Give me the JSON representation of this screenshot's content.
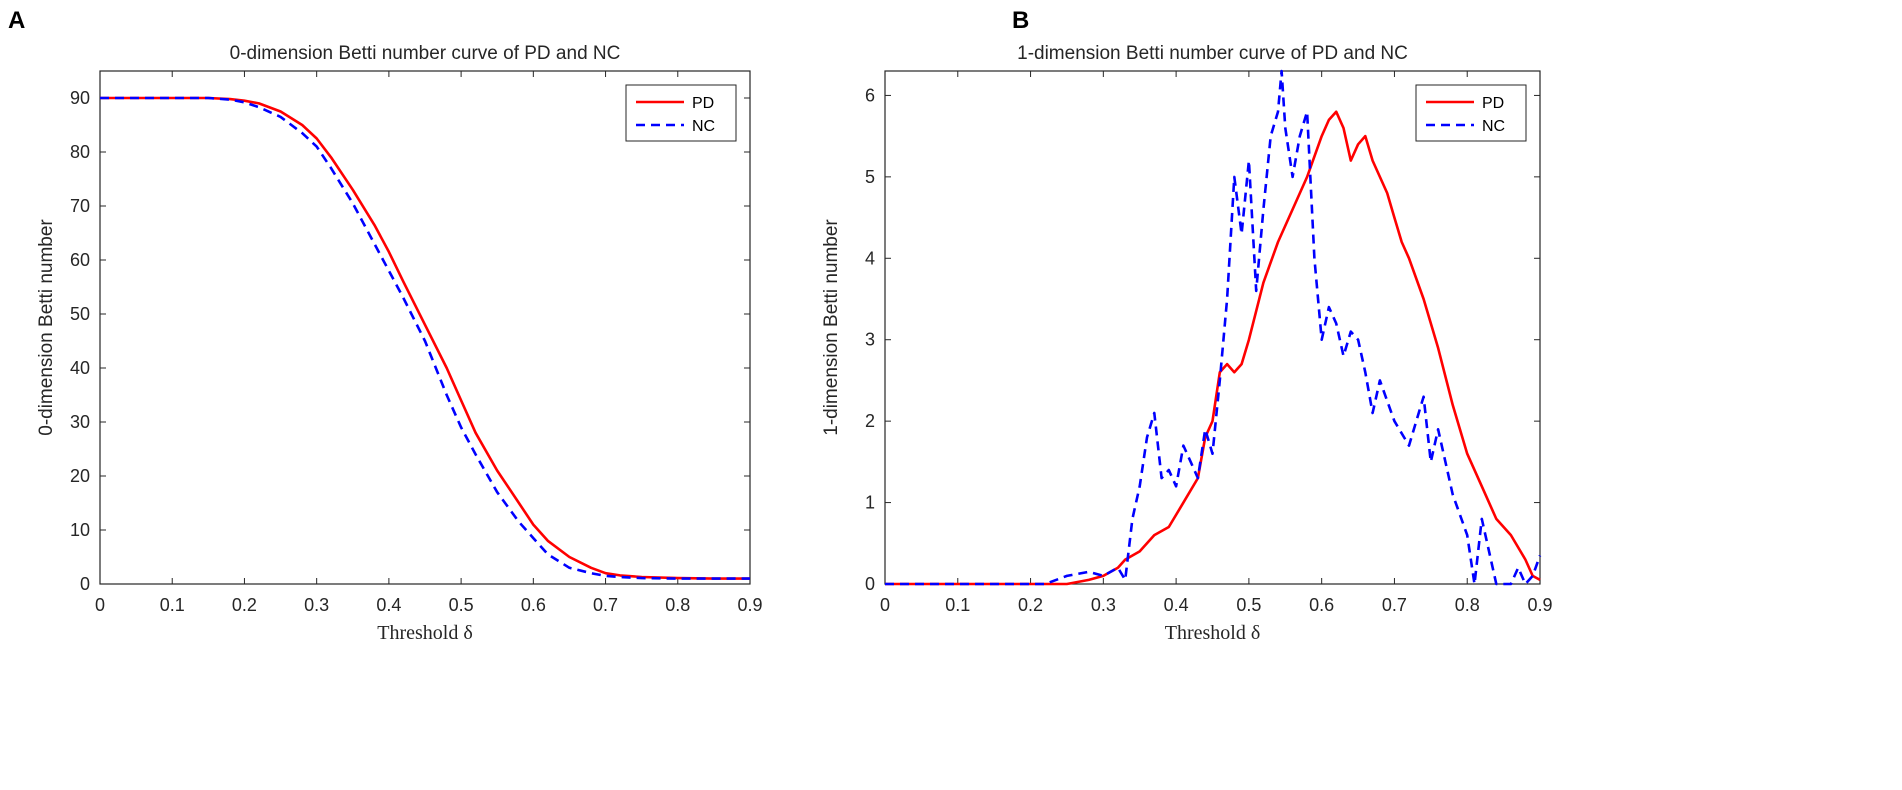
{
  "figure": {
    "panel_a_letter": "A",
    "panel_b_letter": "B"
  },
  "colors": {
    "pd": "#ff0000",
    "nc": "#0000ff",
    "axis": "#262626"
  },
  "chart_data": [
    {
      "type": "line",
      "panel": "A",
      "title": "0-dimension Betti number curve of PD and NC",
      "xlabel": "Threshold δ",
      "ylabel": "0-dimension Betti number",
      "xlim": [
        0,
        0.9
      ],
      "ylim": [
        0,
        95
      ],
      "xticks": [
        0,
        0.1,
        0.2,
        0.3,
        0.4,
        0.5,
        0.6,
        0.7,
        0.8,
        0.9
      ],
      "yticks": [
        0,
        10,
        20,
        30,
        40,
        50,
        60,
        70,
        80,
        90
      ],
      "legend": "top-right",
      "series": [
        {
          "name": "PD",
          "style": "solid",
          "x": [
            0,
            0.1,
            0.15,
            0.18,
            0.2,
            0.22,
            0.25,
            0.28,
            0.3,
            0.32,
            0.35,
            0.38,
            0.4,
            0.42,
            0.45,
            0.48,
            0.5,
            0.52,
            0.55,
            0.58,
            0.6,
            0.62,
            0.65,
            0.68,
            0.7,
            0.72,
            0.75,
            0.8,
            0.85,
            0.9
          ],
          "y": [
            90,
            90,
            90,
            89.8,
            89.5,
            89,
            87.5,
            85,
            82.5,
            79,
            73,
            66.5,
            61.5,
            56,
            48,
            40,
            34,
            28,
            21,
            15,
            11,
            8,
            5,
            3,
            2,
            1.6,
            1.3,
            1.1,
            1,
            1
          ]
        },
        {
          "name": "NC",
          "style": "dashed",
          "x": [
            0,
            0.1,
            0.15,
            0.18,
            0.2,
            0.22,
            0.25,
            0.28,
            0.3,
            0.32,
            0.35,
            0.38,
            0.4,
            0.42,
            0.45,
            0.48,
            0.5,
            0.52,
            0.55,
            0.58,
            0.6,
            0.62,
            0.65,
            0.68,
            0.7,
            0.72,
            0.75,
            0.8,
            0.85,
            0.9
          ],
          "y": [
            90,
            90,
            90,
            89.7,
            89.2,
            88.3,
            86.5,
            83.5,
            81,
            77,
            70.5,
            63,
            58,
            53,
            45,
            35,
            29,
            24,
            17,
            11.5,
            8.5,
            5.5,
            3,
            2,
            1.5,
            1.3,
            1.1,
            1,
            1,
            1
          ]
        }
      ]
    },
    {
      "type": "line",
      "panel": "B",
      "title": "1-dimension Betti number curve of PD and NC",
      "xlabel": "Threshold δ",
      "ylabel": "1-dimension Betti number",
      "xlim": [
        0,
        0.9
      ],
      "ylim": [
        0,
        6.3
      ],
      "xticks": [
        0,
        0.1,
        0.2,
        0.3,
        0.4,
        0.5,
        0.6,
        0.7,
        0.8,
        0.9
      ],
      "yticks": [
        0,
        1,
        2,
        3,
        4,
        5,
        6
      ],
      "legend": "top-right",
      "series": [
        {
          "name": "PD",
          "style": "solid",
          "x": [
            0,
            0.2,
            0.25,
            0.28,
            0.3,
            0.32,
            0.33,
            0.35,
            0.37,
            0.39,
            0.41,
            0.43,
            0.44,
            0.45,
            0.46,
            0.47,
            0.48,
            0.49,
            0.5,
            0.52,
            0.54,
            0.56,
            0.58,
            0.6,
            0.61,
            0.62,
            0.63,
            0.64,
            0.65,
            0.66,
            0.67,
            0.68,
            0.69,
            0.7,
            0.71,
            0.72,
            0.74,
            0.76,
            0.78,
            0.8,
            0.82,
            0.84,
            0.86,
            0.88,
            0.89,
            0.9
          ],
          "y": [
            0,
            0,
            0,
            0.05,
            0.1,
            0.2,
            0.3,
            0.4,
            0.6,
            0.7,
            1.0,
            1.3,
            1.8,
            2.0,
            2.6,
            2.7,
            2.6,
            2.7,
            3.0,
            3.7,
            4.2,
            4.6,
            5.0,
            5.5,
            5.7,
            5.8,
            5.6,
            5.2,
            5.4,
            5.5,
            5.2,
            5.0,
            4.8,
            4.5,
            4.2,
            4.0,
            3.5,
            2.9,
            2.2,
            1.6,
            1.2,
            0.8,
            0.6,
            0.3,
            0.1,
            0.05
          ]
        },
        {
          "name": "NC",
          "style": "dashed",
          "x": [
            0,
            0.22,
            0.25,
            0.28,
            0.3,
            0.32,
            0.33,
            0.34,
            0.35,
            0.36,
            0.37,
            0.38,
            0.39,
            0.4,
            0.41,
            0.42,
            0.43,
            0.44,
            0.45,
            0.46,
            0.47,
            0.48,
            0.49,
            0.5,
            0.51,
            0.52,
            0.53,
            0.54,
            0.545,
            0.55,
            0.56,
            0.57,
            0.58,
            0.59,
            0.6,
            0.61,
            0.62,
            0.63,
            0.64,
            0.65,
            0.66,
            0.67,
            0.68,
            0.7,
            0.72,
            0.74,
            0.75,
            0.76,
            0.78,
            0.8,
            0.81,
            0.82,
            0.84,
            0.86,
            0.87,
            0.88,
            0.89,
            0.9
          ],
          "y": [
            0,
            0,
            0.1,
            0.15,
            0.1,
            0.2,
            0.05,
            0.8,
            1.2,
            1.8,
            2.1,
            1.3,
            1.4,
            1.2,
            1.7,
            1.5,
            1.3,
            1.9,
            1.6,
            2.5,
            3.5,
            5.0,
            4.3,
            5.2,
            3.6,
            4.6,
            5.5,
            5.8,
            6.3,
            5.6,
            5.0,
            5.5,
            5.8,
            4.0,
            3.0,
            3.4,
            3.2,
            2.8,
            3.1,
            3.0,
            2.6,
            2.1,
            2.5,
            2.0,
            1.7,
            2.3,
            1.5,
            1.9,
            1.1,
            0.6,
            0.0,
            0.8,
            0.0,
            0.0,
            0.2,
            0.0,
            0.1,
            0.35
          ]
        }
      ]
    }
  ]
}
